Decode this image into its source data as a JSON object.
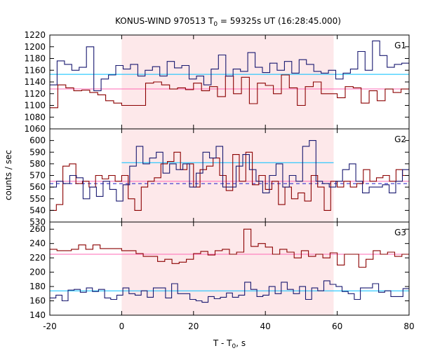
{
  "chart_data": {
    "type": "line",
    "title": "KONUS-WIND 970513 T",
    "title_sub": "0",
    "title_rest": " = 59325s UT (16:28:45.000)",
    "xlabel": "T - T",
    "xlabel_sub": "0",
    "xlabel_rest": ", s",
    "ylabel": "counts / sec",
    "xlim": [
      -20,
      80
    ],
    "x_ticks": [
      "-20",
      "0",
      "20",
      "40",
      "60",
      "80"
    ],
    "x_tick_values": [
      -20,
      0,
      20,
      40,
      60,
      80
    ],
    "highlight_interval": [
      0,
      59
    ],
    "colors": {
      "red_series": "#8b0000",
      "blue_series": "#191970",
      "red_bg": "#ff69b4",
      "blue_bg": "#00bfff",
      "highlight": "#fde8ea",
      "dashed": "#3333cc"
    },
    "panels": [
      {
        "label": "G1",
        "ylim": [
          1060,
          1220
        ],
        "y_ticks": [
          "1060",
          "1080",
          "1100",
          "1120",
          "1140",
          "1160",
          "1180",
          "1200",
          "1220"
        ],
        "y_tick_values": [
          1060,
          1080,
          1100,
          1120,
          1140,
          1160,
          1180,
          1200,
          1220
        ],
        "red_background": 1128,
        "blue_background": 1153,
        "red_values": [
          1096,
          1135,
          1130,
          1125,
          1126,
          1122,
          1118,
          1108,
          1104,
          1100,
          1100,
          1100,
          1138,
          1140,
          1135,
          1128,
          1130,
          1127,
          1138,
          1125,
          1132,
          1115,
          1150,
          1120,
          1148,
          1103,
          1138,
          1134,
          1120,
          1152,
          1130,
          1100,
          1132,
          1140,
          1120,
          1120,
          1113,
          1132,
          1130,
          1104,
          1125,
          1108,
          1128,
          1122,
          1128
        ],
        "blue_values": [
          1135,
          1176,
          1170,
          1160,
          1165,
          1200,
          1125,
          1145,
          1152,
          1168,
          1162,
          1170,
          1150,
          1160,
          1166,
          1150,
          1175,
          1164,
          1168,
          1145,
          1150,
          1135,
          1162,
          1186,
          1150,
          1162,
          1158,
          1190,
          1165,
          1156,
          1172,
          1160,
          1175,
          1155,
          1178,
          1170,
          1158,
          1155,
          1160,
          1145,
          1155,
          1162,
          1192,
          1160,
          1210,
          1185,
          1165,
          1170,
          1172
        ]
      },
      {
        "label": "G2",
        "ylim": [
          530,
          610
        ],
        "y_ticks": [
          "530",
          "540",
          "550",
          "560",
          "570",
          "580",
          "590",
          "600"
        ],
        "y_tick_values": [
          530,
          540,
          550,
          560,
          570,
          580,
          590,
          600
        ],
        "red_background": 565,
        "blue_background": 581,
        "blue_mean": 563,
        "red_values": [
          540,
          545,
          578,
          580,
          563,
          565,
          560,
          570,
          567,
          570,
          565,
          570,
          550,
          540,
          560,
          565,
          568,
          580,
          582,
          590,
          575,
          580,
          560,
          575,
          578,
          585,
          570,
          557,
          588,
          565,
          590,
          562,
          570,
          558,
          565,
          545,
          560,
          550,
          555,
          548,
          570,
          560,
          540,
          565,
          560,
          565,
          560,
          563,
          575,
          565,
          568,
          570,
          565,
          575,
          570
        ],
        "blue_values": [
          560,
          565,
          563,
          570,
          568,
          550,
          560,
          552,
          565,
          558,
          548,
          562,
          578,
          595,
          580,
          585,
          590,
          572,
          580,
          575,
          580,
          560,
          572,
          590,
          585,
          595,
          560,
          560,
          578,
          588,
          575,
          565,
          555,
          570,
          580,
          560,
          570,
          565,
          595,
          600,
          565,
          563,
          560,
          565,
          575,
          580,
          565,
          555,
          560,
          560,
          562,
          555,
          565,
          575
        ]
      },
      {
        "label": "G3",
        "ylim": [
          140,
          270
        ],
        "y_ticks": [
          "140",
          "160",
          "180",
          "200",
          "220",
          "240",
          "260"
        ],
        "y_tick_values": [
          140,
          160,
          180,
          200,
          220,
          240,
          260
        ],
        "red_background": 225,
        "blue_background": 174,
        "red_values": [
          232,
          230,
          230,
          232,
          238,
          232,
          238,
          233,
          233,
          233,
          230,
          230,
          226,
          222,
          222,
          215,
          218,
          212,
          214,
          218,
          226,
          229,
          224,
          230,
          232,
          225,
          228,
          260,
          236,
          240,
          235,
          225,
          232,
          228,
          220,
          230,
          222,
          225,
          220,
          227,
          210,
          225,
          225,
          207,
          218,
          230,
          225,
          228,
          222,
          225
        ],
        "blue_values": [
          164,
          168,
          160,
          175,
          176,
          172,
          178,
          173,
          176,
          164,
          162,
          168,
          178,
          170,
          168,
          174,
          165,
          178,
          178,
          164,
          184,
          170,
          170,
          162,
          160,
          158,
          166,
          163,
          165,
          171,
          165,
          168,
          186,
          176,
          166,
          168,
          180,
          170,
          186,
          176,
          170,
          180,
          162,
          178,
          174,
          188,
          183,
          180,
          173,
          170,
          162,
          178,
          178,
          184,
          172,
          174,
          166,
          166,
          177
        ]
      }
    ]
  }
}
